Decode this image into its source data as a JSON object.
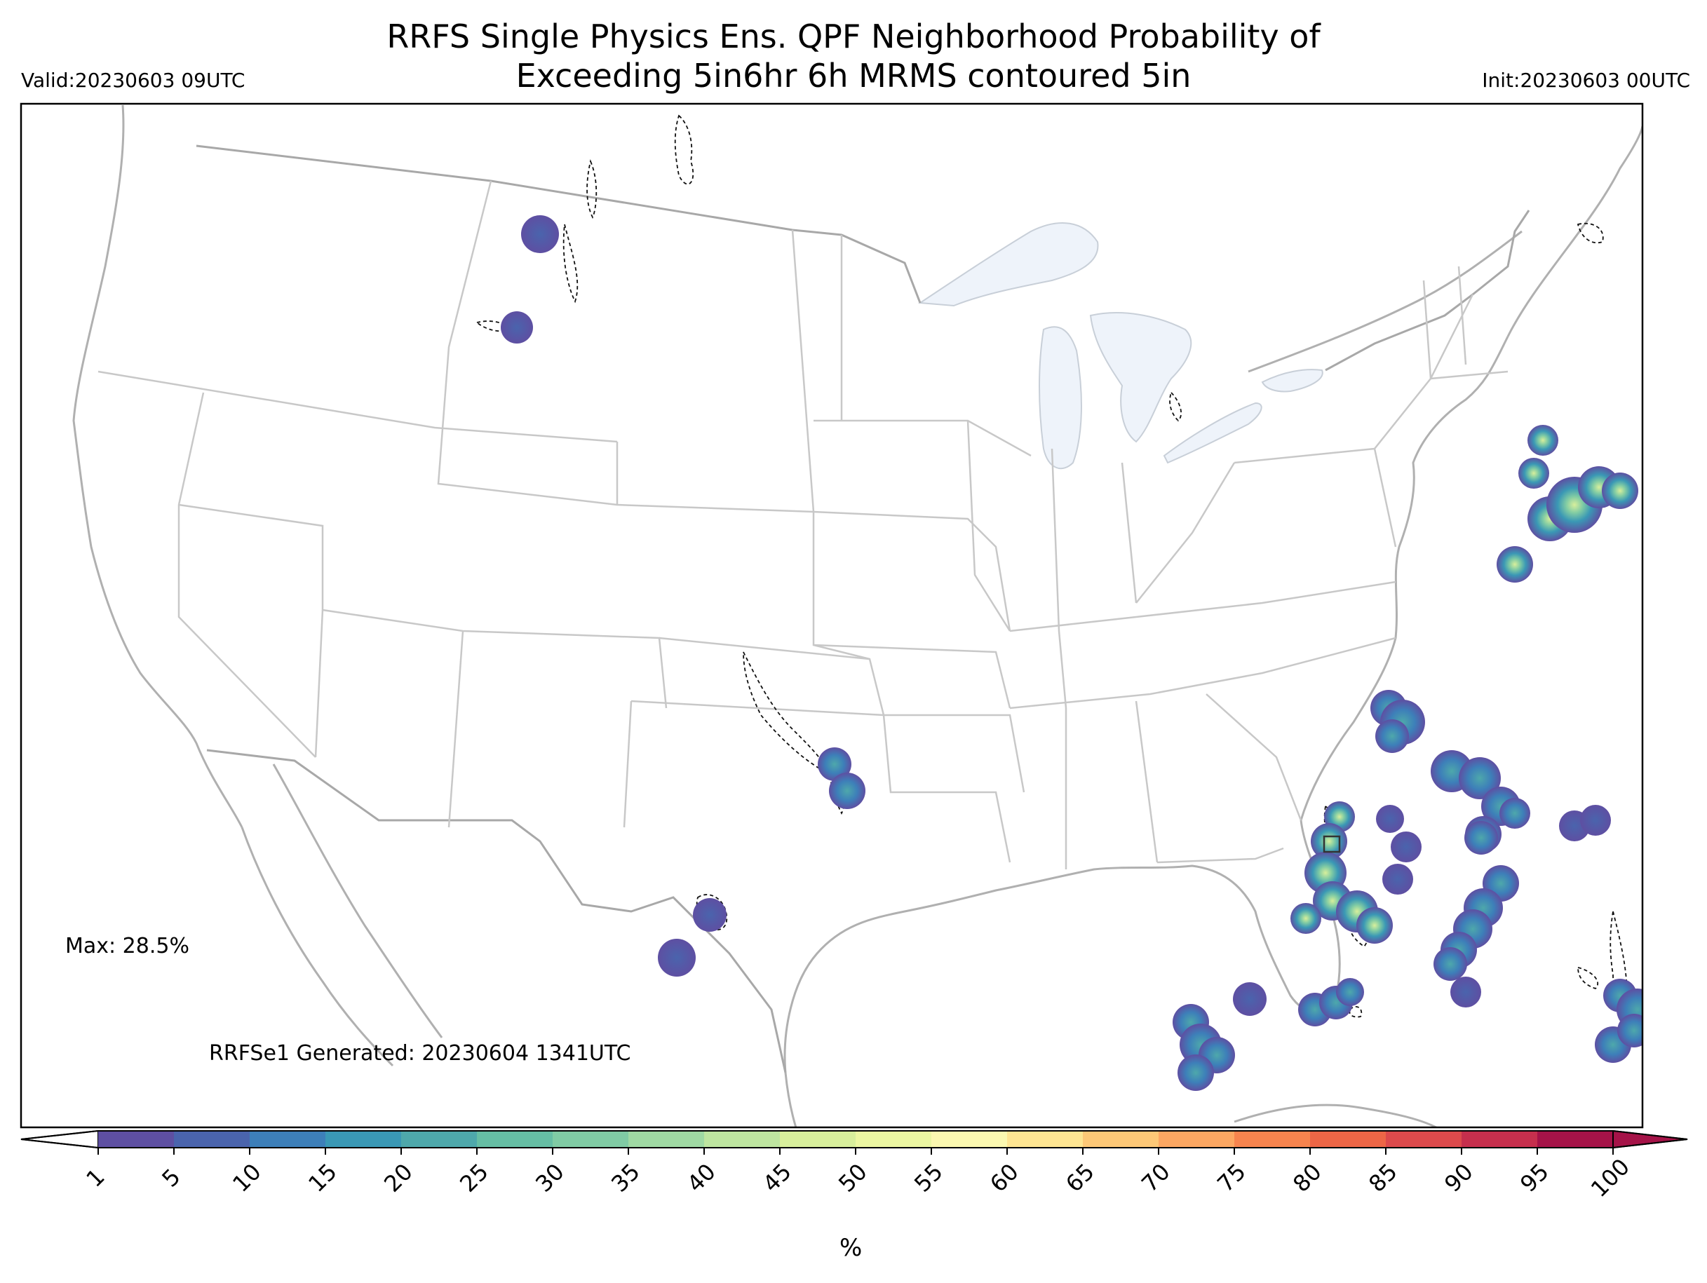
{
  "header": {
    "title_line1": "RRFS Single Physics Ens. QPF Neighborhood Probability of",
    "title_line2": "Exceeding 5in6hr 6h MRMS contoured 5in",
    "valid": "Valid:20230603 09UTC",
    "init": "Init:20230603 00UTC"
  },
  "annotations": {
    "max": "Max: 28.5%",
    "generated": "RRFSe1 Generated: 20230604 1341UTC"
  },
  "colorbar": {
    "unit": "%",
    "ticks": [
      "1",
      "5",
      "10",
      "15",
      "20",
      "25",
      "30",
      "35",
      "40",
      "45",
      "50",
      "55",
      "60",
      "65",
      "70",
      "75",
      "80",
      "85",
      "90",
      "95",
      "100"
    ],
    "colors": [
      "#5e4fa2",
      "#4a64ad",
      "#3d7fb9",
      "#3a98b5",
      "#4ea8ab",
      "#66bea4",
      "#80cba4",
      "#9fd9a3",
      "#bee5a0",
      "#d8ef9c",
      "#ecf7a2",
      "#fbf8b0",
      "#fee592",
      "#fdc877",
      "#fca762",
      "#f7844e",
      "#ed6646",
      "#dc4a4c",
      "#c62f4d",
      "#a51348"
    ]
  },
  "map": {
    "water_color": "#eef3fa",
    "border_color": "#b5b5b5",
    "contour_color": "#000000",
    "regions": "continental United States with surrounding Canada, Mexico, Gulf of Mexico and western Atlantic"
  }
}
